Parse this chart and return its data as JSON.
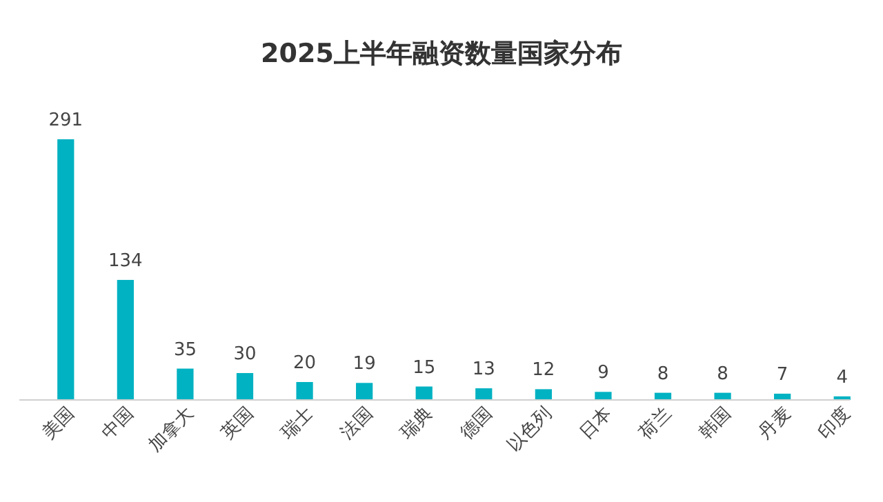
{
  "chart_data": {
    "type": "bar",
    "title": "2025上半年融资数量国家分布",
    "categories": [
      "美国",
      "中国",
      "加拿大",
      "英国",
      "瑞士",
      "法国",
      "瑞典",
      "德国",
      "以色列",
      "日本",
      "荷兰",
      "韩国",
      "丹麦",
      "印度"
    ],
    "values": [
      291,
      134,
      35,
      30,
      20,
      19,
      15,
      13,
      12,
      9,
      8,
      8,
      7,
      4
    ],
    "color": "#00b2c2",
    "data_labels": true,
    "tick_labels": "x",
    "grid": false
  }
}
